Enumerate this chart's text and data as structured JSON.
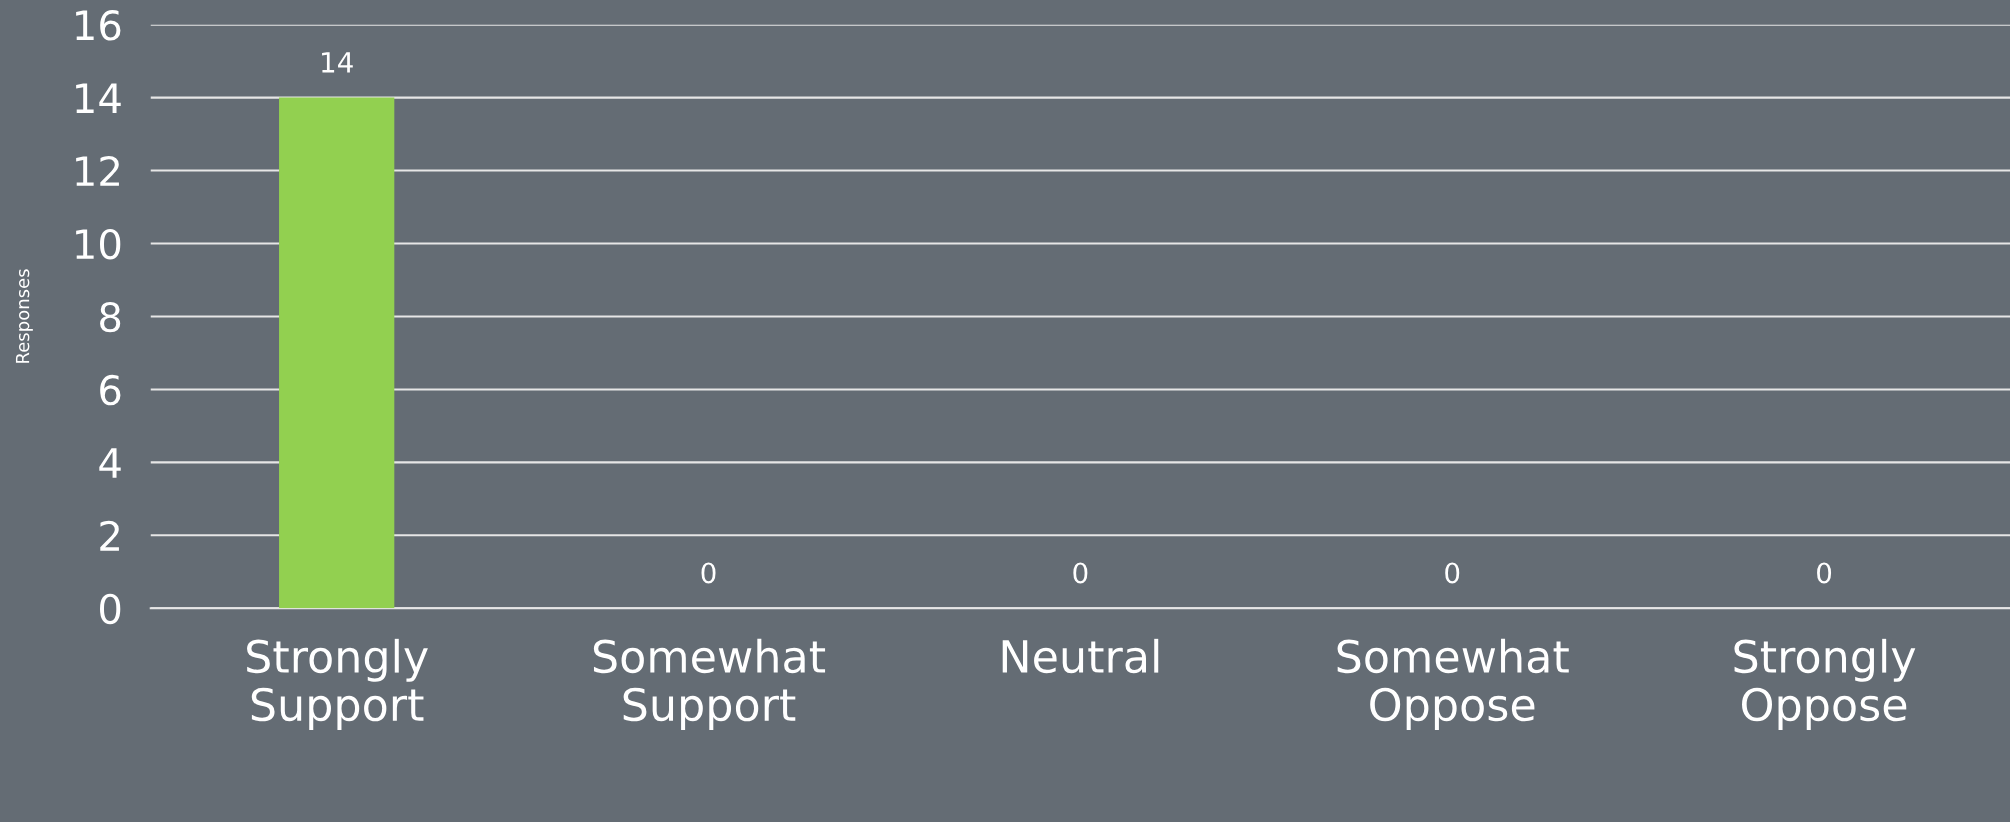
{
  "chart_data": {
    "type": "bar",
    "ylabel": "Responses",
    "categories": [
      "Strongly\nSupport",
      "Somewhat\nSupport",
      "Neutral",
      "Somewhat\nOppose",
      "Strongly\nOppose"
    ],
    "values": [
      14,
      0,
      0,
      0,
      0
    ],
    "color": "#92d050",
    "ylim": [
      0,
      16
    ],
    "yticks": [
      0,
      2,
      4,
      6,
      8,
      10,
      12,
      14,
      16
    ],
    "grid": "y",
    "data_labels": true
  }
}
